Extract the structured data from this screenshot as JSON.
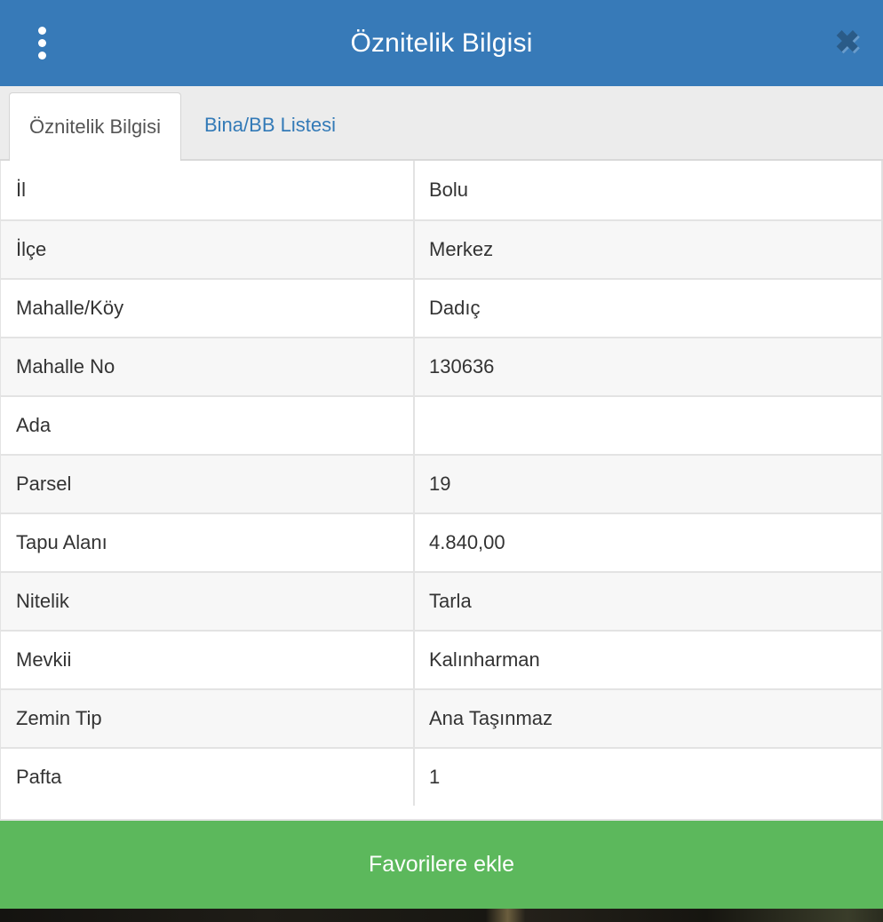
{
  "header": {
    "title": "Öznitelik Bilgisi",
    "menu_icon": "kebab-menu-icon",
    "close_icon": {
      "name": "close-icon",
      "glyph": "✖"
    }
  },
  "tabs": [
    {
      "label": "Öznitelik Bilgisi",
      "active": true
    },
    {
      "label": "Bina/BB Listesi",
      "active": false
    }
  ],
  "attributes": {
    "rows": [
      {
        "label": "İl",
        "value": "Bolu"
      },
      {
        "label": "İlçe",
        "value": "Merkez"
      },
      {
        "label": "Mahalle/Köy",
        "value": "Dadıç"
      },
      {
        "label": "Mahalle No",
        "value": "130636"
      },
      {
        "label": "Ada",
        "value": ""
      },
      {
        "label": "Parsel",
        "value": "19"
      },
      {
        "label": "Tapu Alanı",
        "value": "4.840,00"
      },
      {
        "label": "Nitelik",
        "value": "Tarla"
      },
      {
        "label": "Mevkii",
        "value": "Kalınharman"
      },
      {
        "label": "Zemin Tip",
        "value": "Ana Taşınmaz"
      },
      {
        "label": "Pafta",
        "value": "1"
      }
    ]
  },
  "footer": {
    "favorite_button_label": "Favorilere ekle"
  },
  "colors": {
    "header_blue": "#377ab8",
    "close_icon_blue": "#2a5b88",
    "tab_link_blue": "#337ab7",
    "active_tab_text": "#555555",
    "button_green": "#5cb85c",
    "row_stripe": "#f7f7f7",
    "row_border": "#e3e3e3",
    "text_dark": "#333333",
    "tabbar_gray": "#ececec"
  }
}
